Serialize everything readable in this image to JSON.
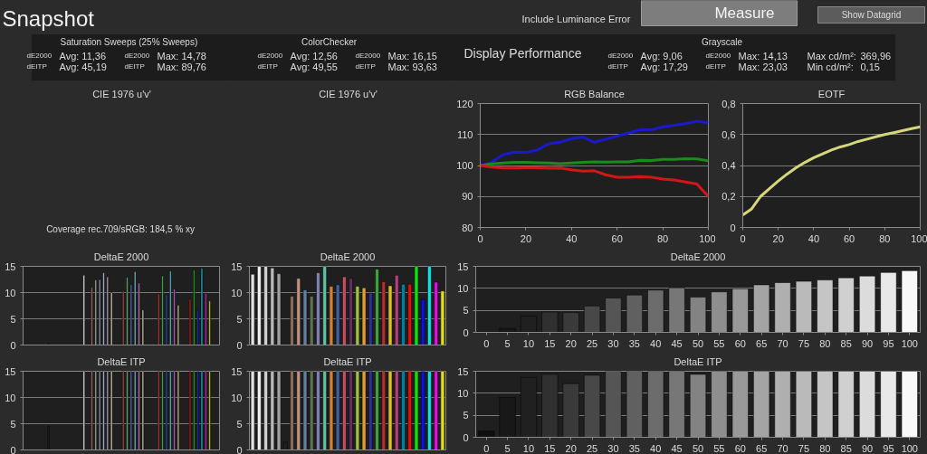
{
  "chart_data": [
    {
      "type": "other",
      "title": "Snapshot",
      "annotations": [
        "Include Luminance Error",
        "Measure",
        "Show Datagrid",
        "Saturation Sweeps (25% Sweeps)",
        "dE2000",
        "Avg: 11,36",
        "dE2000",
        "Max: 14,78",
        "dEITP",
        "Avg: 45,19",
        "dEITP",
        "Max: 89,76",
        "ColorChecker",
        "dE2000",
        "Avg: 12,56",
        "dE2000",
        "Max: 16,15",
        "dEITP",
        "Avg: 49,55",
        "dEITP",
        "Max: 93,63",
        "Display Performance",
        "Grayscale",
        "dE2000",
        "Avg: 9,06",
        "dE2000",
        "Max: 14,13",
        "Max cd/m²:",
        "369,96",
        "dEITP",
        "Avg: 17,29",
        "dEITP",
        "Max: 23,03",
        "Min cd/m²:",
        "0,15"
      ]
    },
    {
      "type": "other",
      "title": "CIE 1976 u'v'",
      "annotations": [
        "Coverage rec.709/sRGB:  184,5 % xy"
      ]
    },
    {
      "type": "other",
      "title": "CIE 1976 u'v'"
    },
    {
      "type": "line",
      "title": "RGB Balance",
      "x": [
        0,
        5,
        10,
        15,
        20,
        25,
        30,
        35,
        40,
        45,
        50,
        55,
        60,
        65,
        70,
        75,
        80,
        85,
        90,
        95,
        100
      ],
      "xlim": [
        0,
        100
      ],
      "xticks": [
        0,
        20,
        40,
        60,
        80,
        100
      ],
      "ylim": [
        80,
        120
      ],
      "yticks": [
        80,
        90,
        100,
        110,
        120
      ],
      "grid": "y",
      "line_style": "solid",
      "series": [
        {
          "color": "#1a1acc",
          "values": [
            100,
            101,
            103.5,
            104.3,
            104.2,
            105,
            107,
            107.5,
            108.7,
            109.2,
            107.5,
            108.5,
            109.5,
            110.5,
            111.5,
            111.5,
            112.5,
            113,
            113.5,
            114.3,
            113.8
          ]
        },
        {
          "color": "#1e8a1e",
          "values": [
            100,
            100.5,
            100.8,
            101,
            101,
            100.9,
            100.8,
            100.6,
            100.8,
            101,
            101.2,
            101.1,
            101.2,
            101.2,
            101.7,
            101.6,
            102,
            102,
            102.2,
            102.1,
            101.5
          ]
        },
        {
          "color": "#d01818",
          "values": [
            100,
            99.5,
            99.2,
            99.2,
            99.3,
            99.3,
            99.1,
            99.2,
            98.6,
            98.2,
            98.3,
            97,
            96.2,
            96.2,
            96.4,
            96.2,
            95.6,
            95.3,
            94.7,
            94,
            90
          ]
        }
      ]
    },
    {
      "type": "line",
      "title": "EOTF",
      "x": [
        0,
        5,
        10,
        15,
        20,
        25,
        30,
        35,
        40,
        45,
        50,
        55,
        60,
        65,
        70,
        75,
        80,
        85,
        90,
        95,
        100
      ],
      "xlim": [
        0,
        100
      ],
      "xticks": [
        0,
        20,
        40,
        60,
        80,
        100
      ],
      "ylim": [
        0,
        0.8
      ],
      "yticks": [
        0,
        {
          "value": 0.2,
          "label": "0,2"
        },
        {
          "value": 0.4,
          "label": "0,4"
        },
        {
          "value": 0.6,
          "label": "0,6"
        },
        {
          "value": 0.8,
          "label": "0,8"
        }
      ],
      "grid": "y",
      "line_style": "solid",
      "series": [
        {
          "color": "#d6d67a",
          "values": [
            0.08,
            0.12,
            0.2,
            0.25,
            0.3,
            0.345,
            0.385,
            0.42,
            0.45,
            0.475,
            0.5,
            0.52,
            0.535,
            0.555,
            0.57,
            0.585,
            0.6,
            0.612,
            0.625,
            0.638,
            0.65
          ]
        }
      ]
    },
    {
      "type": "bar",
      "title": "DeltaE 2000",
      "ylim": [
        0,
        15
      ],
      "yticks": [
        0,
        5,
        10,
        15
      ],
      "grid": "y",
      "tick_labels": "y",
      "categories": [
        null,
        null,
        null,
        null,
        null,
        null,
        null,
        null,
        null,
        null,
        null,
        null,
        null,
        null,
        null,
        null,
        null,
        null,
        null,
        null,
        null,
        null,
        null,
        null,
        null,
        null,
        null,
        null,
        null,
        null,
        null,
        null,
        null,
        null,
        null,
        null,
        null,
        null,
        null,
        null,
        null,
        null,
        null,
        null,
        null,
        null,
        null,
        null,
        null,
        null
      ],
      "values": [
        null,
        null,
        null,
        null,
        null,
        null,
        0.2,
        null,
        null,
        null,
        null,
        null,
        null,
        null,
        null,
        13.3,
        null,
        11,
        12.4,
        12.5,
        13.8,
        13,
        10,
        null,
        null,
        10.3,
        12.9,
        11.5,
        14,
        11.8,
        6.7,
        null,
        null,
        null,
        9.8,
        13.2,
        9.6,
        14.1,
        10.7,
        7.6,
        null,
        null,
        8.8,
        14.3,
        6.7,
        14.6,
        9.9,
        8.4,
        null,
        null
      ],
      "colors": [
        null,
        null,
        null,
        null,
        null,
        null,
        "#202020",
        null,
        null,
        null,
        null,
        null,
        null,
        null,
        null,
        "#f0f0f0",
        null,
        "#b07070",
        "#a0c0a0",
        "#a0a0c8",
        "#a8c8d8",
        "#c8a8c8",
        "#d8d8b8",
        null,
        null,
        "#b05050",
        "#70b070",
        "#6070c0",
        "#80c0d0",
        "#c080c0",
        "#d0d0a0",
        null,
        null,
        null,
        "#c04040",
        "#50b050",
        "#4050c0",
        "#60c0d0",
        "#c060c0",
        "#d0d090",
        null,
        null,
        "#d02020",
        "#20b020",
        "#2030d0",
        "#20c0d0",
        "#d030d0",
        "#d0d040",
        null,
        null
      ]
    },
    {
      "type": "bar",
      "title": "DeltaE 2000",
      "ylim": [
        0,
        15
      ],
      "yticks": [
        0,
        5,
        10,
        15
      ],
      "grid": "y",
      "tick_labels": "y",
      "categories": [
        null,
        null,
        null,
        null,
        null,
        null,
        null,
        null,
        null,
        null,
        null,
        null,
        null,
        null,
        null,
        null,
        null,
        null,
        null,
        null,
        null,
        null,
        null,
        null,
        null,
        null,
        null,
        null,
        null,
        null
      ],
      "values": [
        13.5,
        15,
        15,
        14.7,
        13.6,
        null,
        9.3,
        12.7,
        10.5,
        9.3,
        13.8,
        15,
        11.2,
        11.5,
        13,
        12.7,
        11.2,
        10.9,
        9.9,
        14.5,
        12.1,
        11.3,
        13.3,
        11.6,
        11.6,
        15,
        8.7,
        15,
        12,
        10.3
      ],
      "colors": [
        "#e0e0e0",
        "#f0f0f0",
        "#d0d0d0",
        "#b8b8b8",
        "#a0a0a0",
        "#202020",
        "#8a6a5a",
        "#c09080",
        "#6080a0",
        "#607050",
        "#8080b0",
        "#60c0a0",
        "#d08030",
        "#4060a0",
        "#c05060",
        "#603060",
        "#a0c040",
        "#e0a030",
        "#303090",
        "#40a040",
        "#b03030",
        "#e0c020",
        "#b04080",
        "#0080a0",
        "#e01010",
        "#10e010",
        "#1010e0",
        "#10e0e0",
        "#e010e0",
        "#e0e010"
      ]
    },
    {
      "type": "bar",
      "title": "DeltaE 2000",
      "ylim": [
        0,
        15
      ],
      "yticks": [
        0,
        5,
        10,
        15
      ],
      "grid": "y",
      "categories": [
        "0",
        "5",
        "10",
        "15",
        "20",
        "25",
        "30",
        "35",
        "40",
        "45",
        "50",
        "55",
        "60",
        "65",
        "70",
        "75",
        "80",
        "85",
        "90",
        "95",
        "100"
      ],
      "values": [
        0,
        0.9,
        3.7,
        4.6,
        4.5,
        6.0,
        7.8,
        8.5,
        9.6,
        10.1,
        8.0,
        9.2,
        9.9,
        10.8,
        11.3,
        11.6,
        11.9,
        12.4,
        12.8,
        13.6,
        14.0
      ],
      "colors": [
        "#101010",
        "#181818",
        "#202020",
        "#303030",
        "#3a3a3a",
        "#484848",
        "#555555",
        "#606060",
        "#6c6c6c",
        "#777777",
        "#838383",
        "#8e8e8e",
        "#999999",
        "#a4a4a4",
        "#afafaf",
        "#bababa",
        "#c5c5c5",
        "#d0d0d0",
        "#dcdcdc",
        "#e8e8e8",
        "#f8f8f8"
      ]
    },
    {
      "type": "bar",
      "title": "DeltaE ITP",
      "ylim": [
        0,
        15
      ],
      "yticks": [
        0,
        5,
        10,
        15
      ],
      "grid": "y",
      "tick_labels": "y",
      "categories": [
        null,
        null,
        null,
        null,
        null,
        null,
        null,
        null,
        null,
        null,
        null,
        null,
        null,
        null,
        null,
        null,
        null,
        null,
        null,
        null,
        null,
        null,
        null,
        null,
        null,
        null,
        null,
        null,
        null,
        null,
        null,
        null,
        null,
        null,
        null,
        null,
        null,
        null,
        null,
        null,
        null,
        null,
        null,
        null,
        null,
        null,
        null,
        null,
        null,
        null
      ],
      "values": [
        null,
        null,
        null,
        null,
        null,
        null,
        4.5,
        null,
        null,
        null,
        null,
        null,
        null,
        null,
        null,
        15,
        null,
        15,
        15,
        15,
        15,
        15,
        15,
        null,
        null,
        15,
        15,
        15,
        15,
        15,
        15,
        null,
        null,
        null,
        15,
        15,
        15,
        15,
        15,
        15,
        null,
        null,
        15,
        15,
        15,
        15,
        15,
        15,
        null,
        null
      ],
      "colors": [
        null,
        null,
        null,
        null,
        null,
        null,
        "#202020",
        null,
        null,
        null,
        null,
        null,
        null,
        null,
        null,
        "#f0f0f0",
        null,
        "#b07070",
        "#a0c0a0",
        "#a0a0c8",
        "#a8c8d8",
        "#c8a8c8",
        "#d8d8b8",
        null,
        null,
        "#b05050",
        "#70b070",
        "#6070c0",
        "#80c0d0",
        "#c080c0",
        "#d0d0a0",
        null,
        null,
        null,
        "#c04040",
        "#50b050",
        "#4050c0",
        "#60c0d0",
        "#c060c0",
        "#d0d090",
        null,
        null,
        "#d02020",
        "#20b020",
        "#2030d0",
        "#20c0d0",
        "#d030d0",
        "#d0d040",
        null,
        null
      ]
    },
    {
      "type": "bar",
      "title": "DeltaE ITP",
      "ylim": [
        0,
        15
      ],
      "yticks": [
        0,
        5,
        10,
        15
      ],
      "grid": "y",
      "tick_labels": "y",
      "categories": [
        null,
        null,
        null,
        null,
        null,
        null,
        null,
        null,
        null,
        null,
        null,
        null,
        null,
        null,
        null,
        null,
        null,
        null,
        null,
        null,
        null,
        null,
        null,
        null,
        null,
        null,
        null,
        null,
        null,
        null
      ],
      "values": [
        15,
        15,
        15,
        15,
        15,
        1.5,
        15,
        15,
        15,
        15,
        15,
        15,
        15,
        15,
        15,
        15,
        15,
        15,
        15,
        15,
        15,
        15,
        15,
        15,
        15,
        15,
        15,
        15,
        15,
        15
      ],
      "colors": [
        "#e0e0e0",
        "#f0f0f0",
        "#d0d0d0",
        "#b8b8b8",
        "#a0a0a0",
        "#202020",
        "#8a6a5a",
        "#c09080",
        "#6080a0",
        "#607050",
        "#8080b0",
        "#60c0a0",
        "#d08030",
        "#4060a0",
        "#c05060",
        "#603060",
        "#a0c040",
        "#e0a030",
        "#303090",
        "#40a040",
        "#b03030",
        "#e0c020",
        "#b04080",
        "#0080a0",
        "#e01010",
        "#10e010",
        "#1010e0",
        "#10e0e0",
        "#e010e0",
        "#e0e010"
      ]
    },
    {
      "type": "bar",
      "title": "DeltaE ITP",
      "ylim": [
        0,
        15
      ],
      "yticks": [
        0,
        5,
        10,
        15
      ],
      "grid": "y",
      "categories": [
        "0",
        "5",
        "10",
        "15",
        "20",
        "25",
        "30",
        "35",
        "40",
        "45",
        "50",
        "55",
        "60",
        "65",
        "70",
        "75",
        "80",
        "85",
        "90",
        "95",
        "100"
      ],
      "values": [
        1.4,
        9.1,
        13.6,
        14.3,
        12.2,
        14.1,
        15,
        15,
        15,
        15,
        14.3,
        15,
        15,
        15,
        15,
        15,
        15,
        15,
        15,
        15,
        15
      ],
      "colors": [
        "#101010",
        "#181818",
        "#202020",
        "#303030",
        "#3a3a3a",
        "#484848",
        "#555555",
        "#606060",
        "#6c6c6c",
        "#777777",
        "#838383",
        "#8e8e8e",
        "#999999",
        "#a4a4a4",
        "#afafaf",
        "#bababa",
        "#c5c5c5",
        "#d0d0d0",
        "#dcdcdc",
        "#e8e8e8",
        "#f8f8f8"
      ]
    }
  ]
}
